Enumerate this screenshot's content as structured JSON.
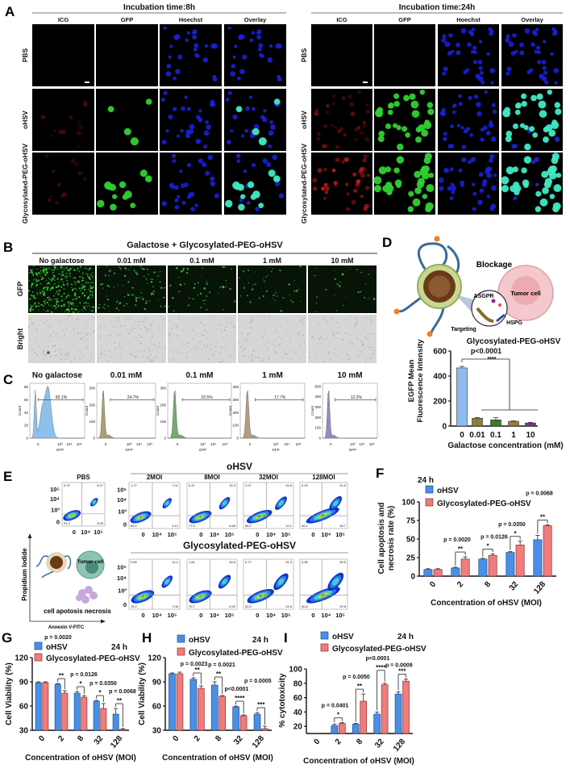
{
  "labels": {
    "A": "A",
    "B": "B",
    "C": "C",
    "D": "D",
    "E": "E",
    "F": "F",
    "G": "G",
    "H": "H",
    "I": "I"
  },
  "panelA": {
    "groups": [
      {
        "title": "Incubation time:8h"
      },
      {
        "title": "Incubation time:24h"
      }
    ],
    "columns": [
      "ICG",
      "GFP",
      "Hoechst",
      "Overlay"
    ],
    "rows": [
      "PBS",
      "oHSV",
      "Glycosylated-PEG-oHSV"
    ],
    "channel_colors": {
      "ICG": "#c81818",
      "GFP": "#30d030",
      "Hoechst": "#1a22e0",
      "Overlay": "#40e8c0"
    }
  },
  "panelB": {
    "title": "Galactose + Glycosylated-PEG-oHSV",
    "columns": [
      "No galactose",
      "0.01 mM",
      "0.1 mM",
      "1 mM",
      "10 mM"
    ],
    "rows": [
      "GFP",
      "Bright"
    ]
  },
  "panelC": {
    "ylabel": "Count",
    "xlabel": "GFP",
    "xticks": [
      "0",
      "10³",
      "10⁴",
      "10⁵"
    ],
    "plots": [
      {
        "title": "No galactose",
        "gate": "82.1%",
        "yticks": [
          "0",
          "20",
          "40",
          "60",
          "80"
        ],
        "color": "#8ec0ec"
      },
      {
        "title": "0.01 mM",
        "gate": "24.7%",
        "yticks": [
          "0",
          "100",
          "200",
          "300"
        ],
        "color": "#aaa070"
      },
      {
        "title": "0.1 mM",
        "gate": "22.5%",
        "yticks": [
          "0",
          "100",
          "200",
          "300"
        ],
        "color": "#72ac6c"
      },
      {
        "title": "1 mM",
        "gate": "17.7%",
        "yticks": [
          "0",
          "100",
          "200",
          "300",
          "400"
        ],
        "color": "#b49c82"
      },
      {
        "title": "10 mM",
        "gate": "12.2%",
        "yticks": [
          "0",
          "100",
          "200",
          "300",
          "400",
          "500"
        ],
        "color": "#9a88c4"
      }
    ]
  },
  "panelD": {
    "illustration": {
      "blockage": "Blockage",
      "tumor": "Tumor cell",
      "receptor1": "ASGPR",
      "receptor2": "HSPG",
      "targeting": "Targeting"
    }
  },
  "panelE": {
    "control": {
      "label": "PBS",
      "q": [
        "0.72",
        "5.27",
        "91.0",
        "3.05"
      ]
    },
    "groups": [
      {
        "title": "oHSV",
        "plots": [
          {
            "label": "2MOI",
            "q": [
              "1.77",
              "7.01",
              "89.1",
              "3.12"
            ]
          },
          {
            "label": "8MOI",
            "q": [
              "0.47",
              "15.3",
              "77.6",
              "6.65"
            ]
          },
          {
            "label": "32MOI",
            "q": [
              "2.07",
              "19.6",
              "66.2",
              "12.1"
            ]
          },
          {
            "label": "128MOI",
            "q": [
              "0.29",
              "24.9",
              "46.1",
              "28.7"
            ]
          }
        ]
      },
      {
        "title": "Glycosylated-PEG-oHSV",
        "plots": [
          {
            "label": "",
            "q": [
              "0.69",
              "14.1",
              "78.2",
              "7.06"
            ]
          },
          {
            "label": "",
            "q": [
              "1.81",
              "20.6",
              "70.7",
              "6.92"
            ]
          },
          {
            "label": "",
            "q": [
              "0.77",
              "31.3",
              "53.3",
              "14.6"
            ]
          },
          {
            "label": "",
            "q": [
              "0.96",
              "39.5",
              "30.6",
              "29.8"
            ]
          }
        ]
      }
    ],
    "yticks": [
      "10⁵",
      "10⁴",
      "10³",
      "0"
    ],
    "xticks": [
      "0",
      "10⁴",
      "10⁵"
    ],
    "ylabel": "Propidium Iodide",
    "xlabel": "Annexin V-FITC",
    "illustration": {
      "tumor": "Tumor cell",
      "caption": "cell apotosis necrosis"
    }
  },
  "chart_data": [
    {
      "id": "D",
      "type": "bar",
      "title": "Glycosylated-PEG-oHSV",
      "xlabel": "Galactose concentration (mM)",
      "ylabel_lines": [
        "EGFP Mean",
        "Fluorescence Intensity"
      ],
      "categories": [
        "0",
        "0.01",
        "0.1",
        "1",
        "10"
      ],
      "values": [
        465,
        63,
        50,
        38,
        25
      ],
      "errors": [
        12,
        6,
        18,
        4,
        5
      ],
      "colors": [
        "#8fbbee",
        "#8c7d3c",
        "#3c7a2e",
        "#9c7a3c",
        "#8a2a8a"
      ],
      "ylim": [
        0,
        600
      ],
      "yticks": [
        0,
        200,
        400,
        600
      ],
      "annotation": {
        "p": "p<0.0001",
        "stars": "****"
      }
    },
    {
      "id": "F",
      "type": "bar",
      "time": "24 h",
      "xlabel": "Concentration of oHSV (MOI)",
      "ylabel_lines": [
        "Cell apoptosis and",
        "necrosis rate (%)"
      ],
      "categories": [
        "0",
        "2",
        "8",
        "32",
        "128"
      ],
      "series": [
        {
          "name": "oHSV",
          "values": [
            9,
            11,
            23,
            32,
            49
          ],
          "errors": [
            1,
            1,
            1,
            1,
            6
          ],
          "color": "#4a8fe6"
        },
        {
          "name": "Glycosylated-PEG-oHSV",
          "values": [
            9,
            23,
            28,
            42,
            68
          ],
          "errors": [
            1,
            3,
            2,
            5,
            1
          ],
          "color": "#f07c7c"
        }
      ],
      "ylim": [
        0,
        100
      ],
      "yticks": [
        0,
        25,
        50,
        75,
        100
      ],
      "comparisons": [
        null,
        {
          "p": "p = 0.0020",
          "stars": "**"
        },
        {
          "p": "p = 0.0126",
          "stars": "*"
        },
        {
          "p": "p = 0.0350",
          "stars": "*"
        },
        {
          "p": "p = 0.0068",
          "stars": "**"
        }
      ]
    },
    {
      "id": "G",
      "type": "bar",
      "time": "24 h",
      "xlabel": "Concentration of oHSV (MOI)",
      "ylabel_lines": [
        "Cell Viability (%)"
      ],
      "categories": [
        "0",
        "2",
        "8",
        "32",
        "128"
      ],
      "series": [
        {
          "name": "oHSV",
          "values": [
            89,
            87,
            76,
            66,
            50
          ],
          "errors": [
            1,
            1,
            2,
            1,
            7
          ],
          "color": "#4a8fe6"
        },
        {
          "name": "Glycosylated-PEG-oHSV",
          "values": [
            89,
            76,
            71,
            57,
            31
          ],
          "errors": [
            1,
            3,
            2,
            6,
            1
          ],
          "color": "#f07c7c"
        }
      ],
      "ylim": [
        30,
        120
      ],
      "yticks": [
        30,
        60,
        90,
        120
      ],
      "comparisons": [
        null,
        {
          "p": "p = 0.0020",
          "stars": "**"
        },
        {
          "p": "p = 0.0126",
          "stars": "*"
        },
        {
          "p": "p = 0.0350",
          "stars": "*"
        },
        {
          "p": "p = 0.0068",
          "stars": "**"
        }
      ]
    },
    {
      "id": "H",
      "type": "bar",
      "time": "24 h",
      "xlabel": "Concentration of oHSV (MOI)",
      "ylabel_lines": [
        "Cell Viability (%)"
      ],
      "categories": [
        "0",
        "2",
        "8",
        "32",
        "128"
      ],
      "series": [
        {
          "name": "oHSV",
          "values": [
            100,
            93,
            86,
            59,
            50
          ],
          "errors": [
            1,
            2,
            4,
            1,
            2
          ],
          "color": "#4a8fe6"
        },
        {
          "name": "Glycosylated-PEG-oHSV",
          "values": [
            100,
            82,
            72,
            48,
            32
          ],
          "errors": [
            2,
            3,
            1,
            1,
            3
          ],
          "color": "#f07c7c"
        }
      ],
      "ylim": [
        30,
        120
      ],
      "yticks": [
        30,
        60,
        90,
        120
      ],
      "comparisons": [
        null,
        {
          "p": "p = 0.0023",
          "stars": "**"
        },
        {
          "p": "p = 0.0021",
          "stars": "**"
        },
        {
          "p": "p<0.0001",
          "stars": "****"
        },
        {
          "p": "p = 0.0005",
          "stars": "***"
        }
      ]
    },
    {
      "id": "I",
      "type": "bar",
      "time": "24 h",
      "xlabel": "Concentration of oHSV (MOI)",
      "ylabel_lines": [
        "% cytotoxicity"
      ],
      "categories": [
        "0",
        "2",
        "8",
        "32",
        "128"
      ],
      "series": [
        {
          "name": "oHSV",
          "values": [
            0,
            21,
            23,
            37,
            65
          ],
          "errors": [
            0,
            2,
            1,
            3,
            3
          ],
          "color": "#4a8fe6"
        },
        {
          "name": "Glycosylated-PEG-oHSV",
          "values": [
            0,
            24,
            55,
            78,
            83
          ],
          "errors": [
            0,
            1,
            10,
            2,
            3
          ],
          "color": "#f07c7c"
        }
      ],
      "ylim": [
        10,
        100
      ],
      "yticks": [
        20,
        40,
        60,
        80,
        100
      ],
      "comparisons": [
        null,
        {
          "p": "p = 0.0401",
          "stars": "*"
        },
        {
          "p": "p = 0.0050",
          "stars": "**"
        },
        {
          "p": "p<0.0001",
          "stars": "****"
        },
        {
          "p": "p = 0.0009",
          "stars": "***"
        }
      ]
    }
  ]
}
